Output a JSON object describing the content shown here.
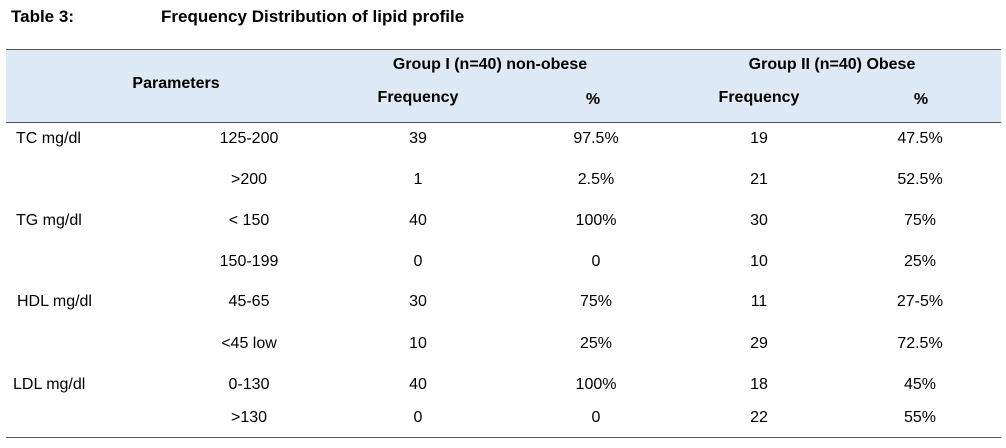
{
  "table": {
    "label": "Table 3:",
    "title": "Frequency Distribution of lipid profile",
    "header": {
      "parameters": "Parameters",
      "group1": "Group I (n=40) non-obese",
      "group2": "Group II (n=40) Obese",
      "frequency": "Frequency",
      "percent": "%"
    },
    "rows": [
      {
        "param": "TC mg/dl",
        "range": "125-200",
        "g1_freq": "39",
        "g1_pct": "97.5%",
        "g2_freq": "19",
        "g2_pct": "47.5%"
      },
      {
        "param": "",
        "range": ">200",
        "g1_freq": "1",
        "g1_pct": "2.5%",
        "g2_freq": "21",
        "g2_pct": "52.5%"
      },
      {
        "param": "TG mg/dl",
        "range": "< 150",
        "g1_freq": "40",
        "g1_pct": "100%",
        "g2_freq": "30",
        "g2_pct": "75%"
      },
      {
        "param": "",
        "range": "150-199",
        "g1_freq": "0",
        "g1_pct": "0",
        "g2_freq": "10",
        "g2_pct": "25%"
      },
      {
        "param": "HDL mg/dl",
        "range": "45-65",
        "g1_freq": "30",
        "g1_pct": "75%",
        "g2_freq": "11",
        "g2_pct": "27-5%"
      },
      {
        "param": "",
        "range": "<45 low",
        "g1_freq": "10",
        "g1_pct": "25%",
        "g2_freq": "29",
        "g2_pct": "72.5%"
      },
      {
        "param": "LDL mg/dl",
        "range": "0-130",
        "g1_freq": "40",
        "g1_pct": "100%",
        "g2_freq": "18",
        "g2_pct": "45%"
      },
      {
        "param": "",
        "range": ">130",
        "g1_freq": "0",
        "g1_pct": "0",
        "g2_freq": "22",
        "g2_pct": "55%"
      }
    ]
  }
}
